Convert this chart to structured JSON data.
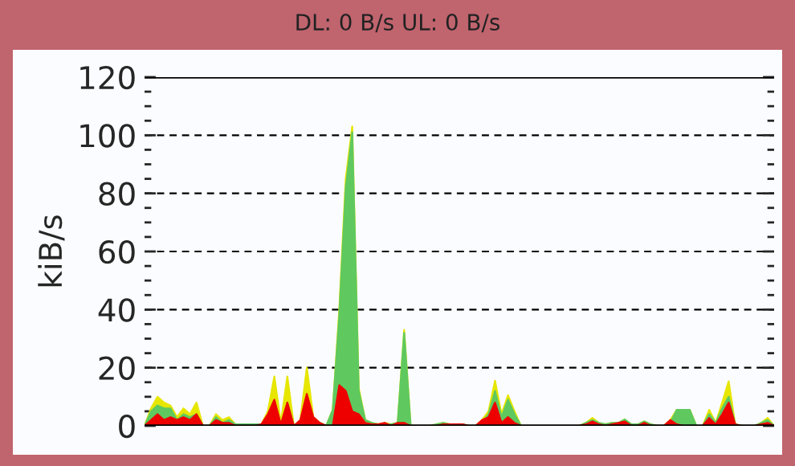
{
  "chart_data": {
    "type": "area",
    "title": "DL: 0 B/s UL: 0 B/s",
    "ylabel": "kiB/s",
    "categories": [
      null,
      null,
      null,
      null,
      null,
      null,
      null,
      null,
      null,
      null,
      null,
      null,
      null,
      null,
      null,
      null,
      null,
      null,
      null,
      null,
      null,
      null,
      null,
      null,
      null,
      null,
      null,
      null,
      null,
      null,
      null,
      null,
      null,
      null,
      null,
      null,
      null,
      null,
      null,
      null,
      null,
      null,
      null,
      null,
      null,
      null,
      null,
      null,
      null,
      null,
      null,
      null,
      null,
      null,
      null,
      null,
      null,
      null,
      null,
      null,
      null,
      null,
      null,
      null,
      null,
      null,
      null,
      null,
      null,
      null,
      null,
      null,
      null,
      null,
      null,
      null,
      null,
      null,
      null,
      null,
      null,
      null,
      null,
      null,
      null,
      null,
      null,
      null,
      null,
      null,
      null,
      null,
      null,
      null,
      null,
      null,
      null,
      null
    ],
    "series": [
      {
        "color": "#e6e600",
        "values": [
          0,
          6,
          10,
          8,
          7,
          3,
          6,
          4,
          8,
          0,
          0,
          4,
          2,
          3,
          0.5,
          0.5,
          0.5,
          0.5,
          0.5,
          5,
          17,
          1,
          17,
          0,
          2,
          20,
          3,
          1,
          0,
          5.5,
          40,
          85,
          103,
          13,
          2,
          1,
          0.5,
          1,
          0.5,
          1,
          33,
          0,
          0,
          0,
          0,
          0.5,
          1,
          0.5,
          0.5,
          0.5,
          0,
          0,
          2,
          5,
          15.5,
          4,
          10.5,
          5,
          0,
          0,
          0,
          0,
          0,
          0,
          0,
          0,
          0,
          0,
          1,
          2.7,
          1,
          0.5,
          1,
          1,
          2.2,
          0.5,
          0.5,
          1.5,
          0.5,
          0,
          0,
          2,
          5.5,
          5.5,
          5.5,
          0,
          0,
          5.5,
          1,
          8,
          15.3,
          0.5,
          0,
          0,
          0,
          1,
          2.7,
          0
        ]
      },
      {
        "color": "#5fc95f",
        "values": [
          0,
          5,
          7,
          6,
          6,
          2,
          4,
          3,
          4,
          0,
          0,
          3,
          1,
          2,
          0.5,
          0.5,
          0.5,
          0.5,
          0.5,
          3,
          8,
          null,
          8,
          0,
          1,
          10,
          2,
          1,
          0,
          5.5,
          38,
          82,
          101,
          12,
          2,
          1,
          0.5,
          0.5,
          0.5,
          1,
          32,
          0,
          0,
          0,
          0,
          0.5,
          1,
          0.5,
          0.5,
          0.5,
          0,
          0,
          1,
          4,
          12,
          3,
          9,
          4,
          0,
          0,
          0,
          0,
          0,
          0,
          0,
          0,
          0,
          0,
          1,
          2,
          1,
          0.5,
          1,
          1,
          2.2,
          0.5,
          0.5,
          1.5,
          0.5,
          0,
          0,
          1,
          5.5,
          5.5,
          5.5,
          0,
          0,
          4,
          1,
          6,
          10,
          0.5,
          0,
          0,
          0,
          1,
          2,
          0
        ]
      },
      {
        "color": "#ee0000",
        "values": [
          0,
          2,
          4,
          2,
          3,
          2,
          3,
          2,
          4,
          0,
          0,
          2,
          1,
          1,
          0,
          0,
          0,
          0,
          0.5,
          4,
          9,
          0.5,
          8,
          0,
          2,
          11,
          3,
          1,
          0,
          0,
          14,
          12,
          5,
          4,
          1,
          0.5,
          0.5,
          1,
          0,
          1,
          1,
          0,
          0,
          0,
          0,
          0,
          0.5,
          0.5,
          0.5,
          0.5,
          0,
          0,
          2,
          3,
          8,
          1,
          3,
          1,
          0,
          0,
          0,
          0,
          0,
          0,
          0,
          0,
          0,
          0,
          0.5,
          1.5,
          0.5,
          0,
          0.5,
          1,
          1.5,
          0,
          0,
          1,
          0,
          0,
          0,
          2,
          0.5,
          0,
          0,
          0,
          0,
          2.7,
          0.5,
          4,
          8,
          0.5,
          0,
          0,
          0,
          0.5,
          1,
          0
        ]
      }
    ],
    "ylim": [
      0,
      120
    ],
    "yticks": [
      0,
      20,
      40,
      60,
      80,
      100,
      120
    ],
    "grid": "y",
    "line_style": "dashed",
    "tick_labels": "y"
  }
}
